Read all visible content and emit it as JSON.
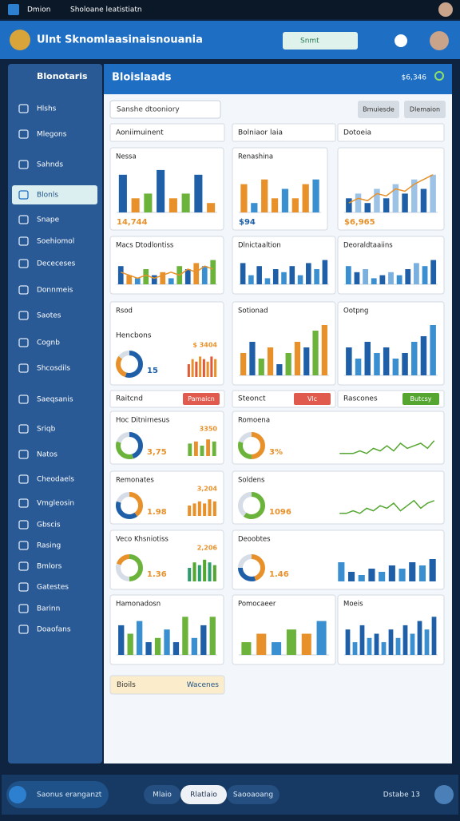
{
  "statusbar": {
    "app": "Dmion",
    "title": "Sholoane leatistiatn"
  },
  "header": {
    "title": "Ulnt Sknomlaasinaisnouania",
    "search": "Snmt"
  },
  "sidebar": {
    "title": "Blonotaris",
    "items": [
      "Hlshs",
      "Mlegons",
      "Sahnds",
      "Blonls",
      "Snape",
      "Soehiomol",
      "Dececeses",
      "Donnmeis",
      "Saotes",
      "Cognb",
      "Shcosdils",
      "Saeqsanis",
      "Sriqb",
      "Natos",
      "Cheodaels",
      "Vmgleosin",
      "Gbscis",
      "Rasing",
      "Bmlors",
      "Gatestes",
      "Barinn",
      "Doaofans"
    ]
  },
  "panel": {
    "title": "Bloislaads",
    "total": "$6,346",
    "filter": "Sanshe dtooniory",
    "buttons": [
      "Bmuiesde",
      "Dlemaion"
    ],
    "tabs": [
      "Aoniimuinent",
      "Bolniaor laia",
      "Dotoeia"
    ],
    "strips": [
      {
        "title": "Raitcnd",
        "tag": "Pamaicn",
        "tag_color": "#e05a4e"
      },
      {
        "title": "Steonct",
        "tag": "Vlc",
        "tag_color": "#e05a4e"
      },
      {
        "title": "Rascones",
        "tag": "Butcsy",
        "tag_color": "#55a630"
      }
    ],
    "cards": [
      {
        "kind": "bars",
        "title": "Nessa",
        "ylim": [
          0,
          10
        ],
        "values": [
          8,
          3,
          4,
          9,
          3,
          4,
          8,
          2
        ],
        "colors": [
          "#1f5fa8",
          "#e8912a",
          "#6bb33a"
        ],
        "stat": "14,744",
        "stat_color": "#e8912a"
      },
      {
        "kind": "bars",
        "title": "Renashina",
        "ylim": [
          0,
          10
        ],
        "values": [
          6,
          2,
          7,
          3,
          5,
          3,
          6,
          7
        ],
        "colors": [
          "#e8912a",
          "#3a8fd0",
          "#e8912a"
        ],
        "stat": "$94",
        "stat_color": "#1f5fa8"
      },
      {
        "kind": "bars",
        "ylim": [
          0,
          10
        ],
        "values": [
          3,
          4,
          2,
          5,
          3,
          6,
          4,
          7,
          5,
          8
        ],
        "colors": [
          "#1f5fa8",
          "#9cc3e6"
        ],
        "line": [
          2,
          3,
          2.5,
          4,
          3.5,
          5,
          4.5,
          6,
          7,
          8
        ],
        "line_color": "#e8912a",
        "stat": "$6,965",
        "stat_color": "#e8912a"
      },
      {
        "kind": "bars",
        "title": "Macs Dtodlontiss",
        "ylim": [
          0,
          10
        ],
        "values": [
          6,
          3,
          2,
          5,
          3,
          4,
          2,
          6,
          5,
          7,
          6,
          8
        ],
        "colors": [
          "#1f5fa8",
          "#e8912a",
          "#3a8fd0",
          "#6bb33a"
        ],
        "line": [
          4,
          3,
          2,
          3,
          2,
          3,
          4,
          3,
          5,
          4,
          6,
          5
        ],
        "line_color": "#e8912a"
      },
      {
        "kind": "bars",
        "title": "Dlnictaaltion",
        "ylim": [
          0,
          10
        ],
        "values": [
          7,
          3,
          6,
          2,
          5,
          4,
          6,
          3,
          7,
          5,
          8
        ],
        "colors": [
          "#1f5fa8",
          "#3a8fd0"
        ]
      },
      {
        "kind": "bars",
        "title": "Deoraldtaaiins",
        "ylim": [
          0,
          10
        ],
        "values": [
          6,
          4,
          5,
          2,
          3,
          4,
          3,
          5,
          7,
          6,
          8
        ],
        "colors": [
          "#3a8fd0",
          "#1f5fa8",
          "#7ab0e0"
        ]
      },
      {
        "kind": "donut",
        "title": "Rsod",
        "subtitle": "Hencbons",
        "values": [
          55,
          30,
          15
        ],
        "colors": [
          "#1f5fa8",
          "#e8912a",
          "#d6dde6"
        ],
        "stat": "15",
        "stat_color": "#1f5fa8",
        "note": "$ 3404",
        "ylim": [
          0,
          10
        ],
        "bars": [
          5,
          7,
          6,
          8,
          7,
          6,
          8,
          7
        ],
        "bar_colors": [
          "#e05a3a",
          "#e8912a"
        ]
      },
      {
        "kind": "bars",
        "title": "Sotionad",
        "ylim": [
          0,
          10
        ],
        "values": [
          4,
          6,
          3,
          5,
          2,
          4,
          6,
          5,
          8,
          9
        ],
        "colors": [
          "#e8912a",
          "#1f5fa8",
          "#6bb33a"
        ]
      },
      {
        "kind": "bars",
        "title": "Ootpng",
        "ylim": [
          0,
          10
        ],
        "values": [
          5,
          3,
          6,
          4,
          5,
          3,
          4,
          6,
          7,
          9
        ],
        "colors": [
          "#1f5fa8",
          "#3a8fd0"
        ]
      },
      {
        "kind": "donut",
        "title": "Hoc Ditnirnesus",
        "values": [
          45,
          35,
          20
        ],
        "colors": [
          "#1f5fa8",
          "#6bb33a",
          "#d6dde6"
        ],
        "stat": "3,75",
        "stat_color": "#e8912a",
        "note": "3350",
        "ylim": [
          0,
          10
        ],
        "bars": [
          6,
          7,
          5,
          8,
          7
        ],
        "bar_colors": [
          "#6bb33a",
          "#e8912a"
        ]
      },
      {
        "kind": "donut",
        "title": "Romoena",
        "values": [
          50,
          30,
          20
        ],
        "colors": [
          "#e8912a",
          "#6bb33a",
          "#d6dde6"
        ],
        "stat": "3%",
        "stat_color": "#e8912a",
        "ylim": [
          0,
          10
        ],
        "spark": [
          1,
          1,
          1,
          2,
          1,
          3,
          2,
          4,
          2,
          5,
          3,
          4,
          5,
          3,
          6
        ],
        "spark_color": "#55a630"
      },
      {
        "kind": "donut",
        "title": "Remonates",
        "values": [
          40,
          40,
          20
        ],
        "colors": [
          "#e8912a",
          "#1f5fa8",
          "#d6dde6"
        ],
        "stat": "1.98",
        "stat_color": "#e8912a",
        "note": "3,204",
        "ylim": [
          0,
          10
        ],
        "bars": [
          5,
          6,
          7,
          6,
          8,
          7
        ],
        "bar_colors": [
          "#e8912a"
        ]
      },
      {
        "kind": "donut",
        "title": "Soldens",
        "values": [
          60,
          40
        ],
        "colors": [
          "#6bb33a",
          "#d6dde6"
        ],
        "stat": "1096",
        "stat_color": "#e8912a",
        "ylim": [
          0,
          10
        ],
        "spark": [
          1,
          1,
          2,
          1,
          3,
          2,
          4,
          3,
          5,
          2,
          4,
          6,
          3,
          5,
          6
        ],
        "spark_color": "#55a630"
      },
      {
        "kind": "donut",
        "title": "Veco Khsniotiss",
        "values": [
          50,
          30,
          20
        ],
        "colors": [
          "#6bb33a",
          "#d6dde6",
          "#e8912a"
        ],
        "stat": "1.36",
        "stat_color": "#e8912a",
        "note": "2,206",
        "ylim": [
          0,
          10
        ],
        "bars": [
          5,
          7,
          6,
          8,
          7,
          6
        ],
        "bar_colors": [
          "#2f9e6e",
          "#55a630"
        ]
      },
      {
        "kind": "donut",
        "title": "Deoobtes",
        "values": [
          45,
          30,
          25
        ],
        "colors": [
          "#e8912a",
          "#1f5fa8",
          "#d6dde6"
        ],
        "stat": "1.46",
        "stat_color": "#e8912a",
        "ylim": [
          0,
          10
        ],
        "bars": [
          6,
          3,
          2,
          4,
          3,
          5,
          4,
          6,
          5,
          7
        ],
        "bar_colors": [
          "#3a8fd0",
          "#1f5fa8"
        ]
      },
      {
        "kind": "bars",
        "title": "Hamonadosn",
        "ylim": [
          0,
          10
        ],
        "values": [
          7,
          5,
          8,
          3,
          4,
          6,
          3,
          9,
          4,
          7,
          9
        ],
        "colors": [
          "#1f5fa8",
          "#6bb33a",
          "#3a8fd0"
        ]
      },
      {
        "kind": "bars",
        "title": "Pomocaeer",
        "ylim": [
          0,
          10
        ],
        "values": [
          3,
          5,
          3,
          6,
          5,
          8
        ],
        "colors": [
          "#6bb33a",
          "#e8912a",
          "#3a8fd0"
        ]
      },
      {
        "kind": "bars",
        "title": "Moeis",
        "ylim": [
          0,
          10
        ],
        "values": [
          6,
          3,
          7,
          4,
          5,
          3,
          6,
          4,
          7,
          5,
          8,
          6,
          9
        ],
        "colors": [
          "#1f5fa8",
          "#3a8fd0"
        ]
      }
    ],
    "tag": {
      "left": "Bioils",
      "right": "Wacenes"
    }
  },
  "bottombar": {
    "label": "Saonus eranganzt",
    "segments": [
      "Mlaio",
      "Rlatlaio",
      "Saooaoang"
    ],
    "right": "Dstabe 13"
  }
}
